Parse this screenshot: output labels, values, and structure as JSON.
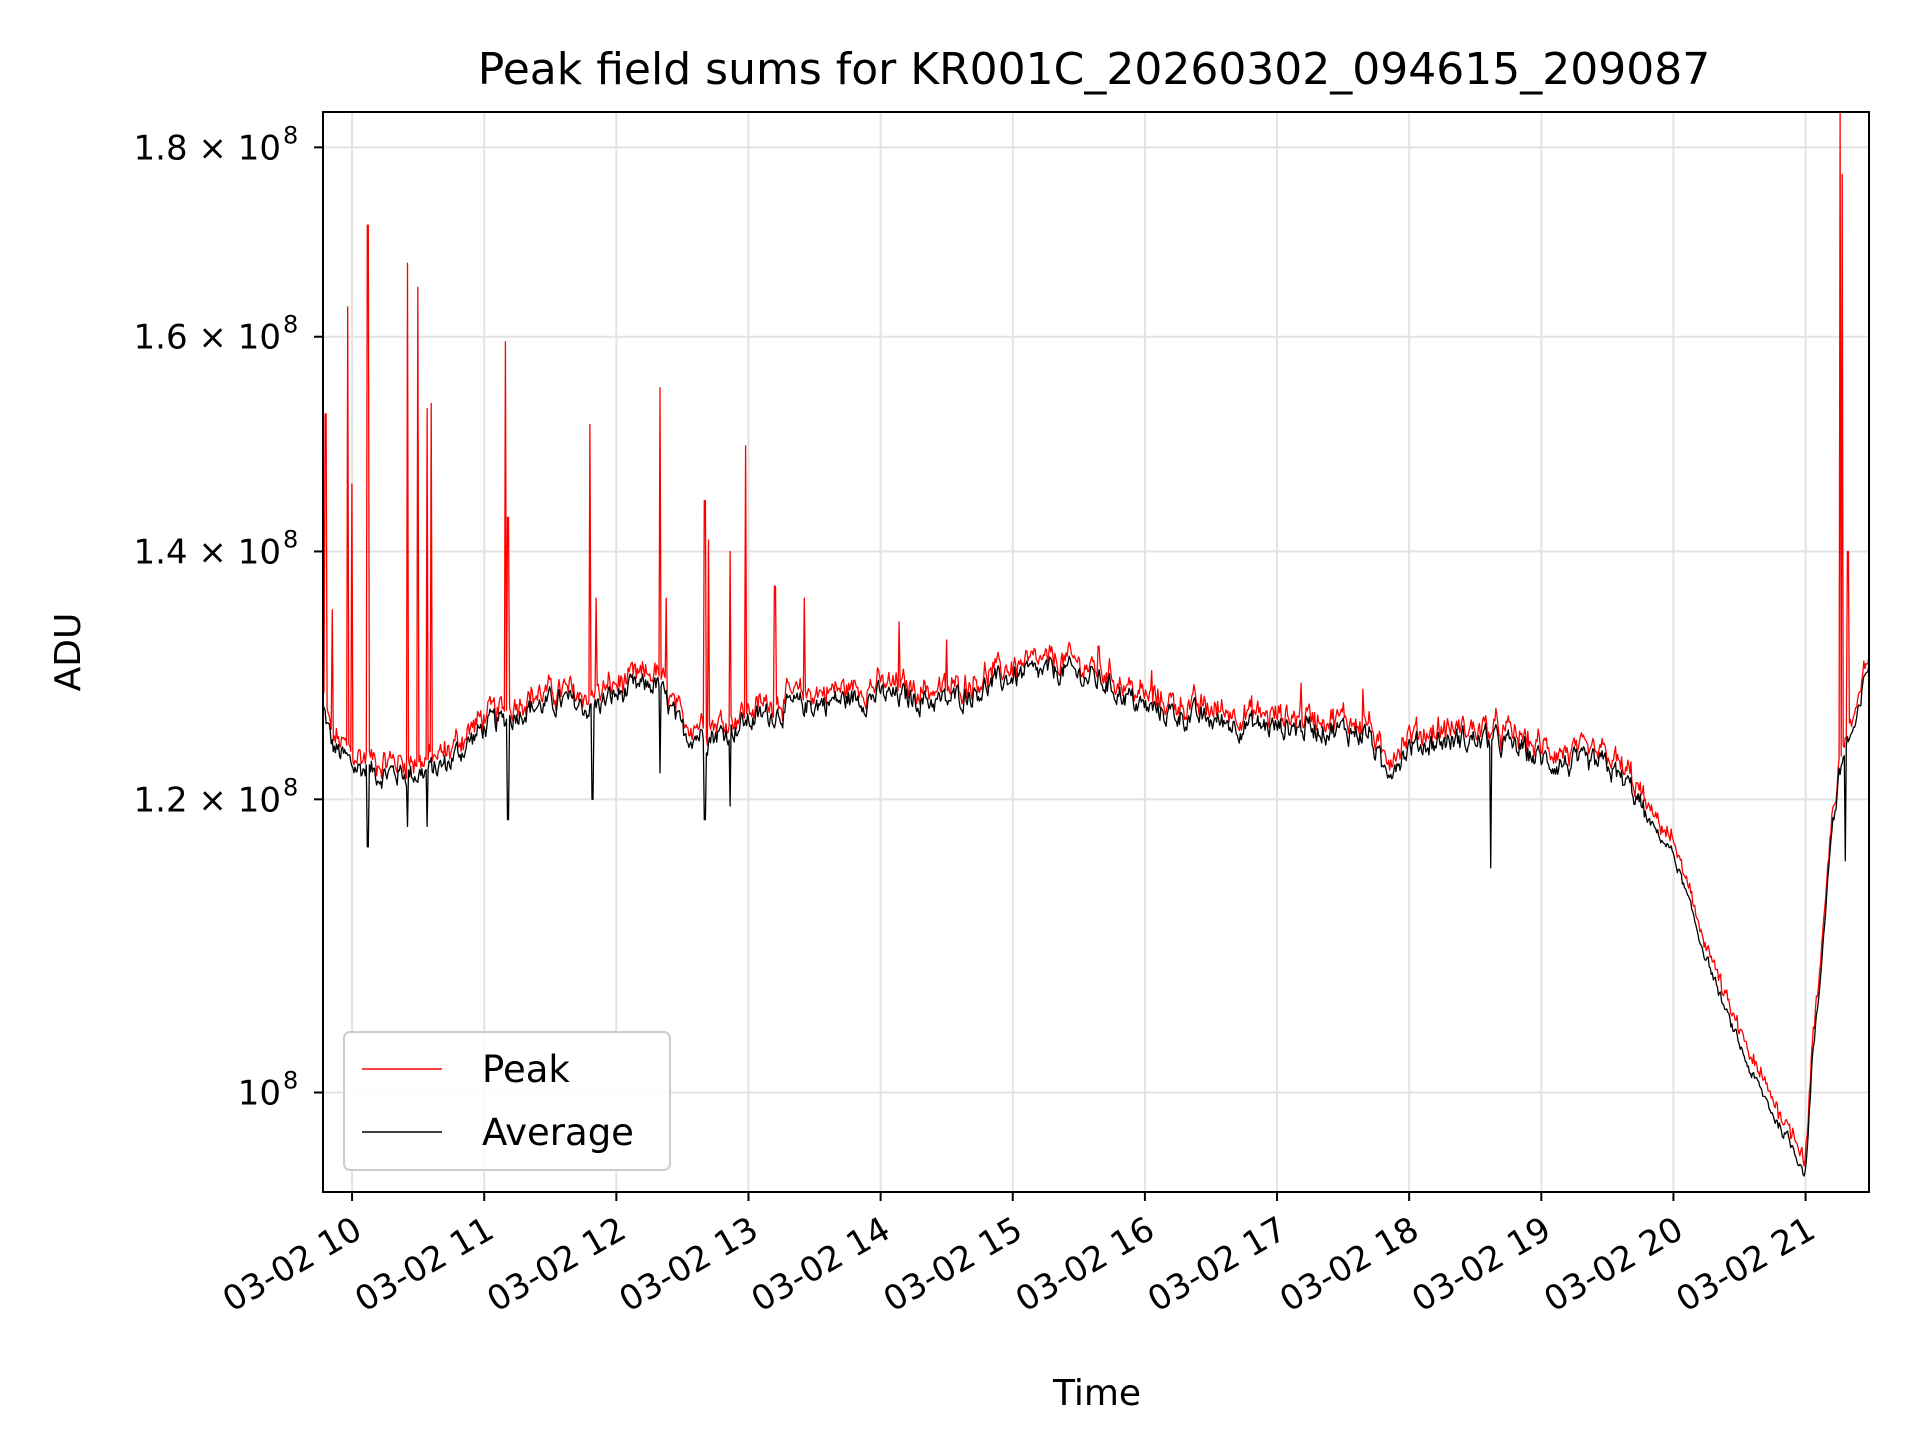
{
  "chart_data": {
    "type": "line",
    "title": "Peak field sums for KR001C_20260302_094615_209087",
    "xlabel": "Time",
    "ylabel": "ADU",
    "y_scale": "log",
    "xlim": [
      9.78,
      21.48
    ],
    "ylim": [
      94000000,
      184000000
    ],
    "grid": true,
    "legend_position": "lower-left",
    "x_ticks": [
      {
        "value": 10,
        "label": "03-02 10"
      },
      {
        "value": 11,
        "label": "03-02 11"
      },
      {
        "value": 12,
        "label": "03-02 12"
      },
      {
        "value": 13,
        "label": "03-02 13"
      },
      {
        "value": 14,
        "label": "03-02 14"
      },
      {
        "value": 15,
        "label": "03-02 15"
      },
      {
        "value": 16,
        "label": "03-02 16"
      },
      {
        "value": 17,
        "label": "03-02 17"
      },
      {
        "value": 18,
        "label": "03-02 18"
      },
      {
        "value": 19,
        "label": "03-02 19"
      },
      {
        "value": 20,
        "label": "03-02 20"
      },
      {
        "value": 21,
        "label": "03-02 21"
      }
    ],
    "y_ticks": [
      {
        "value": 100000000,
        "base": "10",
        "sup": "8"
      },
      {
        "value": 120000000,
        "base": "1.2 × 10",
        "sup": "8"
      },
      {
        "value": 140000000,
        "base": "1.4 × 10",
        "sup": "8"
      },
      {
        "value": 160000000,
        "base": "1.6 × 10",
        "sup": "8"
      },
      {
        "value": 180000000,
        "base": "1.8 × 10",
        "sup": "8"
      }
    ],
    "baseline_hours": [
      9.78,
      9.85,
      10.0,
      10.2,
      10.4,
      10.55,
      10.7,
      10.9,
      11.0,
      11.15,
      11.3,
      11.6,
      11.8,
      12.0,
      12.15,
      12.3,
      12.5,
      12.8,
      13.0,
      13.3,
      13.6,
      14.0,
      14.5,
      15.0,
      15.4,
      15.7,
      16.0,
      16.5,
      17.0,
      17.3,
      17.7,
      17.8,
      18.0,
      18.3,
      18.6,
      18.8,
      19.0,
      19.3,
      19.5,
      19.7,
      19.8,
      20.0,
      20.2,
      20.4,
      20.6,
      20.8,
      20.95,
      21.0,
      21.05,
      21.1,
      21.15,
      21.2,
      21.25,
      21.3,
      21.4,
      21.48
    ],
    "baseline_adu_millions": [
      127,
      124,
      122.5,
      122,
      122,
      122,
      122.5,
      124.5,
      125.5,
      126,
      127,
      127.5,
      127,
      128,
      128.5,
      129,
      125,
      125,
      126,
      127,
      127.5,
      128,
      127.5,
      129.5,
      130,
      129,
      127,
      126,
      125.5,
      125.5,
      125,
      122,
      124,
      124.5,
      124.5,
      124,
      123,
      122.5,
      122.5,
      120.5,
      118.5,
      116,
      110,
      105,
      101,
      98,
      96,
      95,
      102,
      106,
      112,
      118,
      121,
      124,
      126,
      131
    ],
    "series": [
      {
        "name": "Peak",
        "color": "#ff0000",
        "spikes": [
          {
            "hour": 9.8,
            "adu_millions": 152.5
          },
          {
            "hour": 9.85,
            "adu_millions": 135
          },
          {
            "hour": 9.97,
            "adu_millions": 163
          },
          {
            "hour": 10.0,
            "adu_millions": 146
          },
          {
            "hour": 10.12,
            "adu_millions": 171.5
          },
          {
            "hour": 10.42,
            "adu_millions": 167.5
          },
          {
            "hour": 10.5,
            "adu_millions": 165
          },
          {
            "hour": 10.57,
            "adu_millions": 153
          },
          {
            "hour": 10.6,
            "adu_millions": 153.5
          },
          {
            "hour": 11.16,
            "adu_millions": 159.5
          },
          {
            "hour": 11.18,
            "adu_millions": 143
          },
          {
            "hour": 11.8,
            "adu_millions": 151.5
          },
          {
            "hour": 11.85,
            "adu_millions": 136
          },
          {
            "hour": 12.33,
            "adu_millions": 155
          },
          {
            "hour": 12.38,
            "adu_millions": 136
          },
          {
            "hour": 12.67,
            "adu_millions": 144.5
          },
          {
            "hour": 12.7,
            "adu_millions": 141
          },
          {
            "hour": 12.86,
            "adu_millions": 140
          },
          {
            "hour": 12.98,
            "adu_millions": 149.5
          },
          {
            "hour": 13.2,
            "adu_millions": 137
          },
          {
            "hour": 13.42,
            "adu_millions": 136
          },
          {
            "hour": 14.14,
            "adu_millions": 134
          },
          {
            "hour": 14.5,
            "adu_millions": 132.5
          },
          {
            "hour": 15.65,
            "adu_millions": 132
          },
          {
            "hour": 16.05,
            "adu_millions": 130
          },
          {
            "hour": 17.18,
            "adu_millions": 129
          },
          {
            "hour": 17.65,
            "adu_millions": 128.5
          },
          {
            "hour": 21.26,
            "adu_millions": 184
          },
          {
            "hour": 21.28,
            "adu_millions": 177
          },
          {
            "hour": 21.32,
            "adu_millions": 140
          }
        ]
      },
      {
        "name": "Average",
        "color": "#000000",
        "dips": [
          {
            "hour": 10.12,
            "adu_millions": 116.5
          },
          {
            "hour": 10.42,
            "adu_millions": 118
          },
          {
            "hour": 10.57,
            "adu_millions": 118
          },
          {
            "hour": 11.18,
            "adu_millions": 118.5
          },
          {
            "hour": 11.82,
            "adu_millions": 120
          },
          {
            "hour": 12.33,
            "adu_millions": 122
          },
          {
            "hour": 12.67,
            "adu_millions": 118.5
          },
          {
            "hour": 12.86,
            "adu_millions": 119.5
          },
          {
            "hour": 18.62,
            "adu_millions": 115
          },
          {
            "hour": 21.3,
            "adu_millions": 115.5
          }
        ]
      }
    ]
  }
}
